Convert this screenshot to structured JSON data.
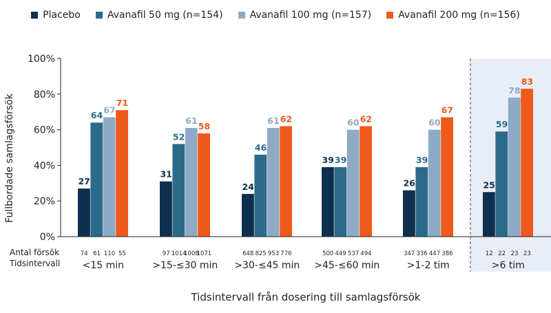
{
  "legend": [
    {
      "label": "Placebo",
      "color": "#0e2f4d"
    },
    {
      "label": "Avanafil 50 mg (n=154)",
      "color": "#2c6a8b"
    },
    {
      "label": "Avanafil 100 mg (n=157)",
      "color": "#8eaac6"
    },
    {
      "label": "Avanafil 200 mg (n=156)",
      "color": "#ee5a1a"
    }
  ],
  "row_labels": {
    "attempts": "Antal försök",
    "interval": "Tidsintervall"
  },
  "chart_data": {
    "type": "bar",
    "ylabel": "Fullbordade samlagsförsök",
    "xlabel": "Tidsintervall från dosering till samlagsförsök",
    "ylim": [
      0,
      100
    ],
    "yticks": [
      "0%",
      "20%",
      "40%",
      "60%",
      "80%",
      "100%"
    ],
    "categories": [
      "<15 min",
      ">15-≤30 min",
      ">30-≤45 min",
      ">45-≤60 min",
      ">1-2 tim",
      ">6 tim"
    ],
    "series": [
      {
        "name": "Placebo",
        "color": "#0e2f4d",
        "label_color": "#0e2f4d",
        "values": [
          27,
          31,
          24,
          39,
          26,
          25
        ],
        "attempts": [
          "74",
          "97",
          "648",
          "500",
          "347",
          "12"
        ]
      },
      {
        "name": "Avanafil 50 mg (n=154)",
        "color": "#2c6a8b",
        "label_color": "#2c6a8b",
        "values": [
          64,
          52,
          46,
          39,
          39,
          59
        ],
        "attempts": [
          "61",
          "1014",
          "825",
          "449",
          "336",
          "22"
        ]
      },
      {
        "name": "Avanafil 100 mg (n=157)",
        "color": "#8eaac6",
        "label_color": "#8eaac6",
        "values": [
          67,
          61,
          61,
          60,
          60,
          78
        ],
        "attempts": [
          "110",
          "1008",
          "953",
          "537",
          "447",
          "23"
        ]
      },
      {
        "name": "Avanafil 200 mg (n=156)",
        "color": "#ee5a1a",
        "label_color": "#ee5a1a",
        "values": [
          71,
          58,
          62,
          62,
          67,
          83
        ],
        "attempts": [
          "55",
          "1071",
          "776",
          "494",
          "386",
          "23"
        ]
      }
    ],
    "highlight_category": ">6 tim",
    "highlight_color": "#e9edf7",
    "grid": false,
    "legend_position": "top"
  }
}
